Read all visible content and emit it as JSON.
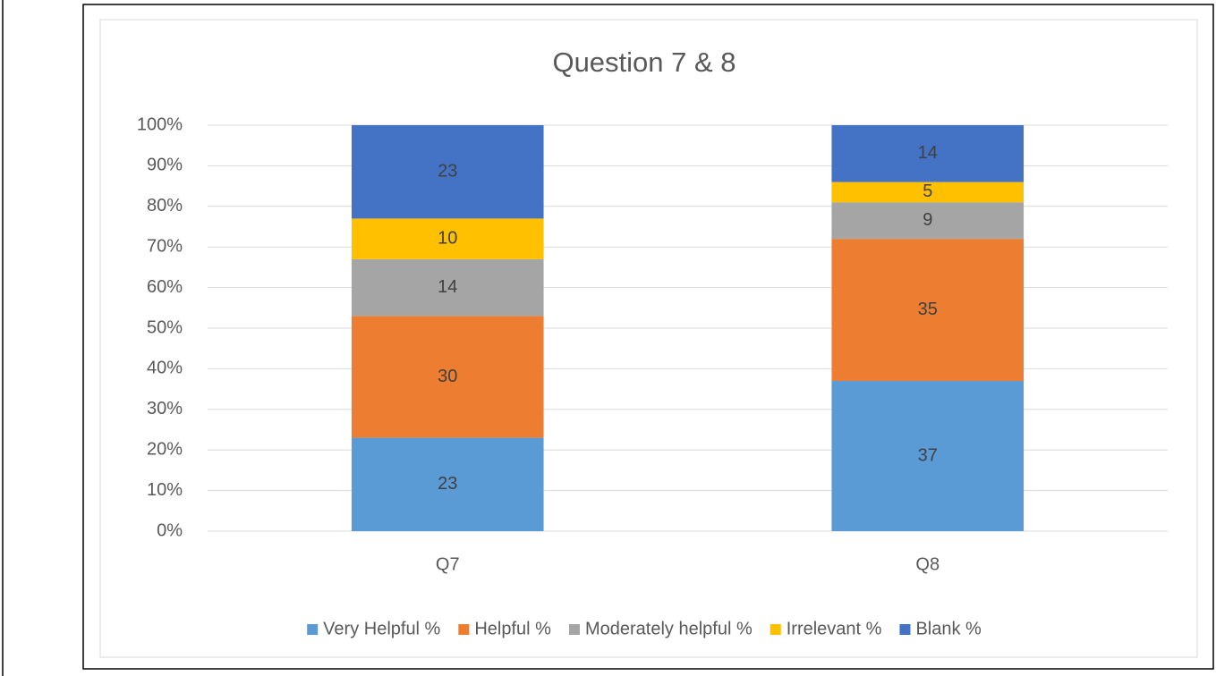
{
  "chart_data": {
    "type": "bar",
    "stacked": true,
    "title": "Question 7 & 8",
    "categories": [
      "Q7",
      "Q8"
    ],
    "series": [
      {
        "name": "Very Helpful %",
        "color": "#5b9bd5",
        "values": [
          23,
          37
        ]
      },
      {
        "name": "Helpful %",
        "color": "#ed7d31",
        "values": [
          30,
          35
        ]
      },
      {
        "name": "Moderately helpful %",
        "color": "#a5a5a5",
        "values": [
          14,
          9
        ]
      },
      {
        "name": "Irrelevant %",
        "color": "#ffc000",
        "values": [
          10,
          5
        ]
      },
      {
        "name": "Blank %",
        "color": "#4472c4",
        "values": [
          23,
          14
        ]
      }
    ],
    "ylim": [
      0,
      100
    ],
    "yticks": [
      {
        "value": 0,
        "label": "0%"
      },
      {
        "value": 10,
        "label": "10%"
      },
      {
        "value": 20,
        "label": "20%"
      },
      {
        "value": 30,
        "label": "30%"
      },
      {
        "value": 40,
        "label": "40%"
      },
      {
        "value": 50,
        "label": "50%"
      },
      {
        "value": 60,
        "label": "60%"
      },
      {
        "value": 70,
        "label": "70%"
      },
      {
        "value": 80,
        "label": "80%"
      },
      {
        "value": 90,
        "label": "90%"
      },
      {
        "value": 100,
        "label": "100%"
      }
    ],
    "grid": true,
    "legend": "bottom"
  }
}
